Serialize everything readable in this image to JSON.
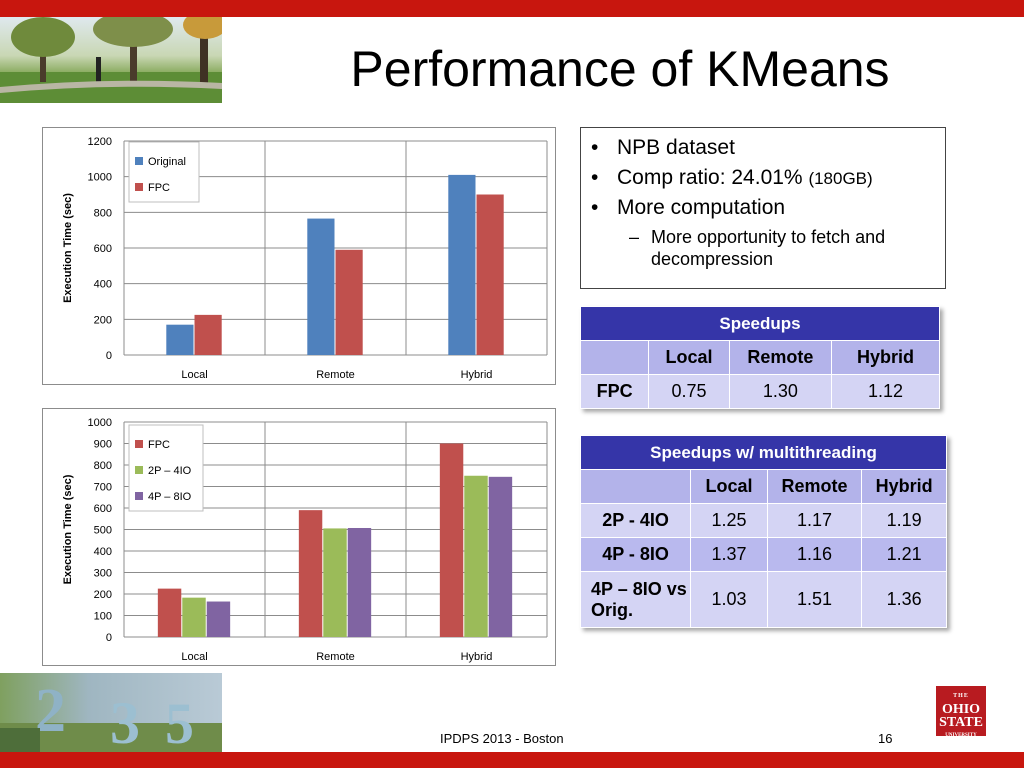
{
  "slide": {
    "title": "Performance of KMeans",
    "footer": "IPDPS 2013 - Boston",
    "page_number": "16",
    "logo": {
      "line1": "THE",
      "line2": "OHIO",
      "line3": "STATE",
      "line4": "UNIVERSITY"
    }
  },
  "bullets": {
    "items": [
      {
        "text": "NPB dataset",
        "small": ""
      },
      {
        "text": "Comp ratio: 24.01% ",
        "small": "(180GB)"
      },
      {
        "text": "More computation",
        "small": ""
      }
    ],
    "sub": "More opportunity to fetch and decompression"
  },
  "table1": {
    "title": "Speedups",
    "columns": [
      "",
      "Local",
      "Remote",
      "Hybrid"
    ],
    "rows": [
      {
        "label": "FPC",
        "values": [
          "0.75",
          "1.30",
          "1.12"
        ]
      }
    ]
  },
  "table2": {
    "title": "Speedups w/ multithreading",
    "columns": [
      "",
      "Local",
      "Remote",
      "Hybrid"
    ],
    "rows": [
      {
        "label": "2P - 4IO",
        "values": [
          "1.25",
          "1.17",
          "1.19"
        ]
      },
      {
        "label": "4P - 8IO",
        "values": [
          "1.37",
          "1.16",
          "1.21"
        ]
      },
      {
        "label": "4P – 8IO vs Orig.",
        "values": [
          "1.03",
          "1.51",
          "1.36"
        ]
      }
    ]
  },
  "chart_data": [
    {
      "type": "bar",
      "categories": [
        "Local",
        "Remote",
        "Hybrid"
      ],
      "series": [
        {
          "name": "Original",
          "values": [
            170,
            765,
            1010
          ],
          "color": "#4f81bd"
        },
        {
          "name": "FPC",
          "values": [
            225,
            590,
            900
          ],
          "color": "#c0504d"
        }
      ],
      "ylabel": "Execution Time (sec)",
      "ylim": [
        0,
        1200
      ],
      "yticks": [
        0,
        200,
        400,
        600,
        800,
        1000,
        1200
      ],
      "grid": true,
      "legend": "top-left"
    },
    {
      "type": "bar",
      "categories": [
        "Local",
        "Remote",
        "Hybrid"
      ],
      "series": [
        {
          "name": "FPC",
          "values": [
            225,
            590,
            900
          ],
          "color": "#c0504d"
        },
        {
          "name": "2P – 4IO",
          "values": [
            183,
            505,
            750
          ],
          "color": "#9bbb59"
        },
        {
          "name": "4P – 8IO",
          "values": [
            165,
            507,
            745
          ],
          "color": "#8064a2"
        }
      ],
      "ylabel": "Execution Time (sec)",
      "ylim": [
        0,
        1000
      ],
      "yticks": [
        0,
        100,
        200,
        300,
        400,
        500,
        600,
        700,
        800,
        900,
        1000
      ],
      "grid": true,
      "legend": "top-left"
    }
  ]
}
